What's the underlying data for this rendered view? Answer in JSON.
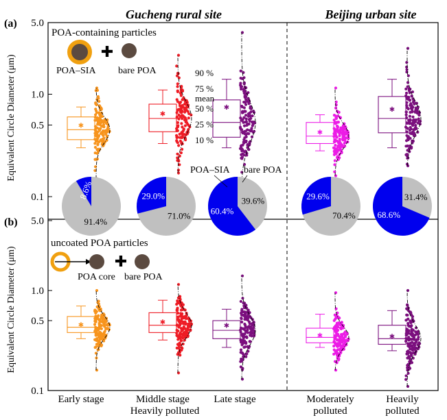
{
  "site_titles": {
    "rural": "Gucheng rural site",
    "urban": "Beijing urban site"
  },
  "panel_labels": {
    "a": "(a)",
    "b": "(b)"
  },
  "axis": {
    "ylabel": "Equivalent Circle Diameter (μm)",
    "ticks": [
      "5.0",
      "1.0",
      "0.5",
      "0.1"
    ],
    "categories": [
      [
        "Early stage"
      ],
      [
        "Middle stage",
        "Heavily polluted"
      ],
      [
        "Late stage"
      ],
      [
        "Moderately",
        "polluted"
      ],
      [
        "Heavily",
        "polluted"
      ]
    ]
  },
  "legend_a": {
    "title": "POA-containing particles",
    "item1": "POA–SIA",
    "item2": "bare POA",
    "plus": "✚"
  },
  "legend_b": {
    "title": "uncoated POA particles",
    "item1": "POA core",
    "item2": "bare POA",
    "plus": "✚"
  },
  "box_legend": {
    "p90": "90 %",
    "p75": "75 %",
    "mean": "mean",
    "p50": "50 %",
    "p25": "25 %",
    "p10": "10 %"
  },
  "pie_legend": {
    "left": "POA–SIA",
    "right": "bare POA"
  },
  "colors": {
    "early": "#f7941d",
    "middle": "#ee1c25",
    "late": "#7b0f7e",
    "moderate": "#ec1ce6",
    "heavy": "#7b0f7e",
    "pie_blue": "#0000ee",
    "pie_gray": "#c0c0c0",
    "particle_brown": "#5b4a40",
    "coat_orange": "#f0a010"
  },
  "chart_data": [
    {
      "type": "box",
      "panel": "a",
      "ylabel": "Equivalent Circle Diameter (μm)",
      "ylim": [
        0.1,
        5.0
      ],
      "yscale": "log",
      "categories": [
        "Early stage",
        "Middle stage Heavily polluted",
        "Late stage",
        "Moderately polluted",
        "Heavily polluted"
      ],
      "boxes": [
        {
          "p10": 0.3,
          "p25": 0.36,
          "p50": 0.45,
          "p75": 0.6,
          "p90": 0.75,
          "mean": 0.5,
          "max": 1.15,
          "min": 0.15
        },
        {
          "p10": 0.33,
          "p25": 0.43,
          "p50": 0.58,
          "p75": 0.8,
          "p90": 1.1,
          "mean": 0.65,
          "max": 2.4,
          "min": 0.17
        },
        {
          "p10": 0.3,
          "p25": 0.38,
          "p50": 0.53,
          "p75": 0.88,
          "p90": 1.4,
          "mean": 0.75,
          "max": 4.0,
          "min": 0.14
        },
        {
          "p10": 0.28,
          "p25": 0.33,
          "p50": 0.39,
          "p75": 0.53,
          "p90": 0.63,
          "mean": 0.43,
          "max": 1.15,
          "min": 0.16
        },
        {
          "p10": 0.3,
          "p25": 0.42,
          "p50": 0.58,
          "p75": 0.95,
          "p90": 1.4,
          "mean": 0.72,
          "max": 2.8,
          "min": 0.2
        }
      ],
      "pies": [
        {
          "POA–SIA": 8.6,
          "bare POA": 91.4,
          "labels": [
            "8.6%",
            "91.4%"
          ]
        },
        {
          "POA–SIA": 29.0,
          "bare POA": 71.0,
          "labels": [
            "29.0%",
            "71.0%"
          ]
        },
        {
          "POA–SIA": 60.4,
          "bare POA": 39.6,
          "labels": [
            "60.4%",
            "39.6%"
          ]
        },
        {
          "POA–SIA": 29.6,
          "bare POA": 70.4,
          "labels": [
            "29.6%",
            "70.4%"
          ]
        },
        {
          "POA–SIA": 68.6,
          "bare POA": 31.4,
          "labels": [
            "68.6%",
            "31.4%"
          ]
        }
      ]
    },
    {
      "type": "box",
      "panel": "b",
      "ylabel": "Equivalent Circle Diameter (μm)",
      "ylim": [
        0.1,
        5.0
      ],
      "yscale": "log",
      "categories": [
        "Early stage",
        "Middle stage Heavily polluted",
        "Late stage",
        "Moderately polluted",
        "Heavily polluted"
      ],
      "boxes": [
        {
          "p10": 0.33,
          "p25": 0.38,
          "p50": 0.43,
          "p75": 0.55,
          "p90": 0.7,
          "mean": 0.46,
          "max": 1.0,
          "min": 0.16
        },
        {
          "p10": 0.32,
          "p25": 0.38,
          "p50": 0.45,
          "p75": 0.6,
          "p90": 0.8,
          "mean": 0.49,
          "max": 1.15,
          "min": 0.15
        },
        {
          "p10": 0.27,
          "p25": 0.33,
          "p50": 0.4,
          "p75": 0.5,
          "p90": 0.65,
          "mean": 0.45,
          "max": 1.4,
          "min": 0.13
        },
        {
          "p10": 0.27,
          "p25": 0.3,
          "p50": 0.34,
          "p75": 0.42,
          "p90": 0.58,
          "mean": 0.36,
          "max": 0.95,
          "min": 0.16
        },
        {
          "p10": 0.25,
          "p25": 0.29,
          "p50": 0.33,
          "p75": 0.45,
          "p90": 0.63,
          "mean": 0.35,
          "max": 1.0,
          "min": 0.11
        }
      ]
    }
  ]
}
